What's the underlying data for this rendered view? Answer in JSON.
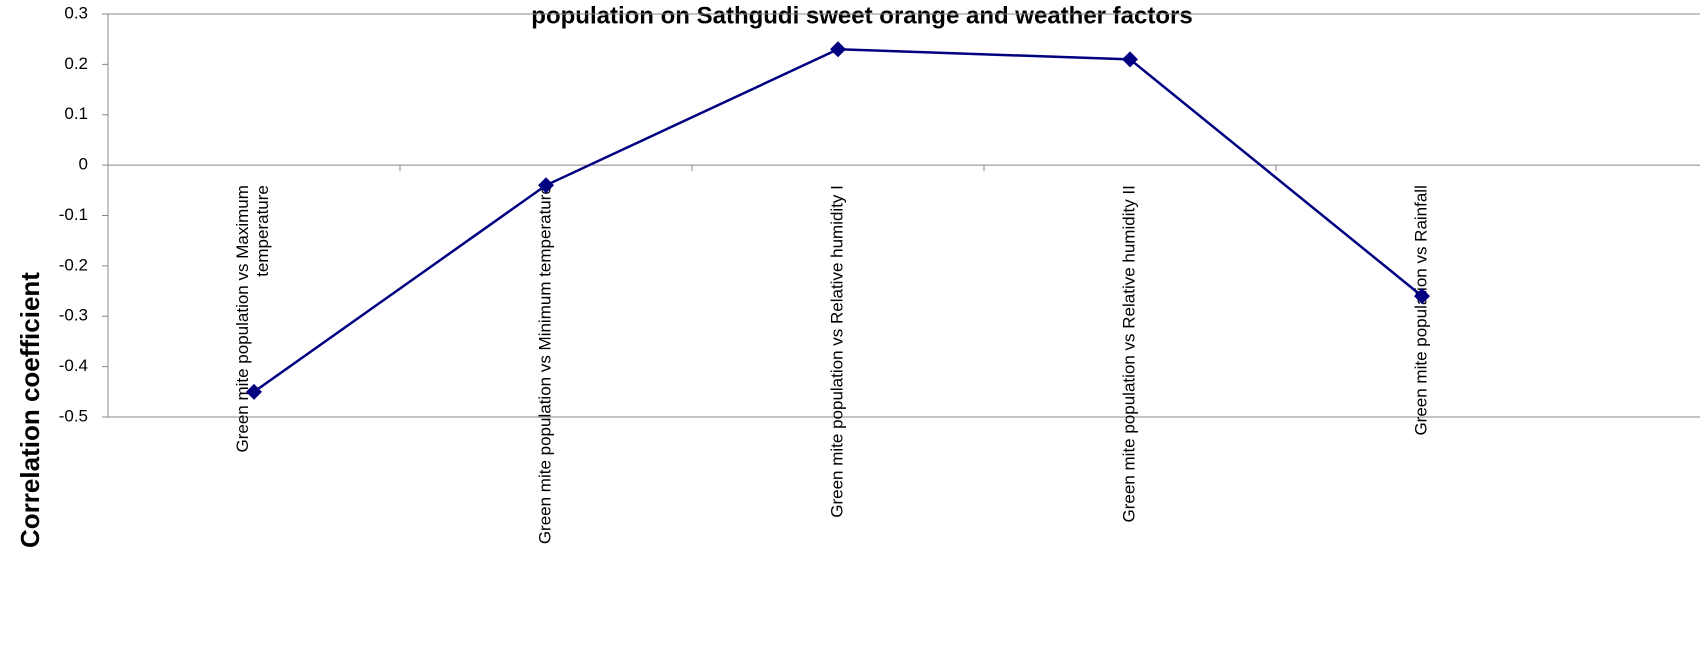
{
  "chart_data": {
    "type": "line",
    "title": "population on Sathgudi sweet orange and weather factors",
    "y_label": "Correlation coefficient",
    "categories": [
      "Green mite population  vs  Maximum temperature",
      "Green mite population  vs  Minimum temperature",
      "Green mite population vs Relative humidity I",
      "Green mite population  vs Relative humidity II",
      "Green mite population  vs Rainfall"
    ],
    "series": [
      {
        "name": "Correlation coefficient",
        "color": "#000080",
        "values": [
          -0.45,
          -0.04,
          0.23,
          0.21,
          -0.26
        ]
      }
    ],
    "ylim": [
      -0.5,
      0.3
    ],
    "yticks": [
      -0.5,
      -0.4,
      -0.3,
      -0.2,
      -0.1,
      0,
      0.1,
      0.2,
      0.3
    ],
    "grid": false
  }
}
